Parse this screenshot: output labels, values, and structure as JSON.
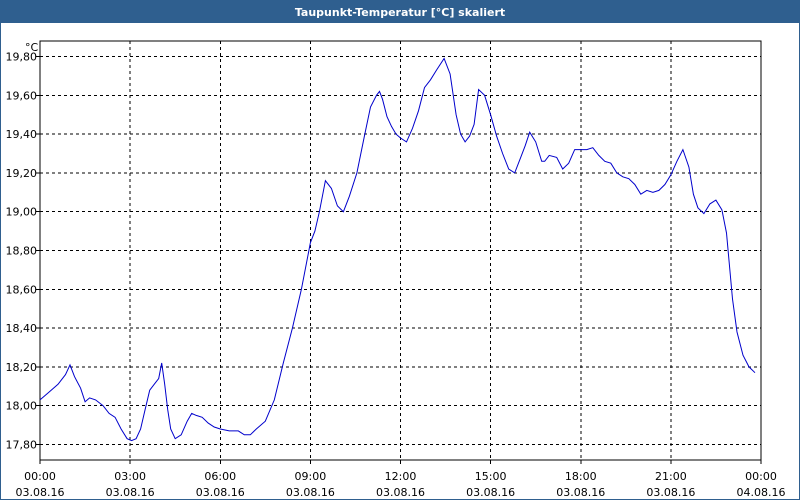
{
  "window": {
    "title": "Taupunkt-Temperatur [°C] skaliert"
  },
  "chart_data": {
    "type": "line",
    "title": "Taupunkt-Temperatur [°C] skaliert",
    "ylabel": "°C",
    "xlabel": "",
    "ylim": [
      17.72,
      19.88
    ],
    "xlim": [
      0,
      24
    ],
    "grid": true,
    "y_ticks": [
      "17,80",
      "18,00",
      "18,20",
      "18,40",
      "18,60",
      "18,80",
      "19,00",
      "19,20",
      "19,40",
      "19,60",
      "19,80"
    ],
    "x_ticks": [
      {
        "time": "00:00",
        "date": "03.08.16"
      },
      {
        "time": "03:00",
        "date": "03.08.16"
      },
      {
        "time": "06:00",
        "date": "03.08.16"
      },
      {
        "time": "09:00",
        "date": "03.08.16"
      },
      {
        "time": "12:00",
        "date": "03.08.16"
      },
      {
        "time": "15:00",
        "date": "03.08.16"
      },
      {
        "time": "18:00",
        "date": "03.08.16"
      },
      {
        "time": "21:00",
        "date": "03.08.16"
      },
      {
        "time": "00:00",
        "date": "04.08.16"
      }
    ],
    "series": [
      {
        "color": "#0000cc",
        "x": [
          0.0,
          0.3,
          0.6,
          0.85,
          1.0,
          1.15,
          1.35,
          1.5,
          1.65,
          1.85,
          2.1,
          2.3,
          2.5,
          2.7,
          2.9,
          3.05,
          3.2,
          3.35,
          3.5,
          3.65,
          3.8,
          3.95,
          4.05,
          4.15,
          4.25,
          4.35,
          4.5,
          4.7,
          4.9,
          5.05,
          5.2,
          5.4,
          5.6,
          5.8,
          6.0,
          6.3,
          6.6,
          6.8,
          7.0,
          7.2,
          7.5,
          7.8,
          8.1,
          8.4,
          8.7,
          9.0,
          9.15,
          9.3,
          9.5,
          9.7,
          9.9,
          10.1,
          10.3,
          10.55,
          10.8,
          11.0,
          11.2,
          11.3,
          11.4,
          11.55,
          11.7,
          11.85,
          12.0,
          12.2,
          12.4,
          12.6,
          12.8,
          13.0,
          13.2,
          13.45,
          13.65,
          13.85,
          14.0,
          14.15,
          14.3,
          14.45,
          14.6,
          14.8,
          15.0,
          15.2,
          15.4,
          15.6,
          15.8,
          16.0,
          16.15,
          16.3,
          16.5,
          16.7,
          16.8,
          16.95,
          17.2,
          17.4,
          17.6,
          17.8,
          18.0,
          18.2,
          18.4,
          18.6,
          18.8,
          19.0,
          19.2,
          19.4,
          19.6,
          19.8,
          20.0,
          20.2,
          20.4,
          20.6,
          20.8,
          21.0,
          21.2,
          21.4,
          21.6,
          21.75,
          21.9,
          22.1,
          22.3,
          22.5,
          22.7,
          22.85,
          22.95,
          23.05,
          23.2,
          23.4,
          23.6,
          23.8
        ],
        "values": [
          18.03,
          18.07,
          18.11,
          18.16,
          18.21,
          18.15,
          18.09,
          18.02,
          18.04,
          18.03,
          18.0,
          17.96,
          17.94,
          17.88,
          17.83,
          17.82,
          17.83,
          17.88,
          17.98,
          18.08,
          18.11,
          18.14,
          18.22,
          18.11,
          17.98,
          17.88,
          17.83,
          17.85,
          17.92,
          17.96,
          17.95,
          17.94,
          17.91,
          17.89,
          17.88,
          17.87,
          17.87,
          17.85,
          17.85,
          17.88,
          17.92,
          18.03,
          18.22,
          18.4,
          18.6,
          18.84,
          18.9,
          19.0,
          19.16,
          19.12,
          19.03,
          19.0,
          19.08,
          19.2,
          19.39,
          19.54,
          19.6,
          19.62,
          19.58,
          19.49,
          19.44,
          19.4,
          19.38,
          19.36,
          19.43,
          19.52,
          19.64,
          19.68,
          19.73,
          19.79,
          19.71,
          19.5,
          19.4,
          19.36,
          19.39,
          19.45,
          19.63,
          19.6,
          19.5,
          19.39,
          19.3,
          19.22,
          19.2,
          19.28,
          19.34,
          19.41,
          19.36,
          19.26,
          19.26,
          19.29,
          19.28,
          19.22,
          19.25,
          19.32,
          19.32,
          19.32,
          19.33,
          19.29,
          19.26,
          19.25,
          19.2,
          19.18,
          19.17,
          19.14,
          19.09,
          19.11,
          19.1,
          19.11,
          19.14,
          19.19,
          19.26,
          19.32,
          19.23,
          19.09,
          19.02,
          18.99,
          19.04,
          19.06,
          19.01,
          18.89,
          18.72,
          18.55,
          18.38,
          18.26,
          18.2,
          18.17
        ]
      }
    ]
  }
}
